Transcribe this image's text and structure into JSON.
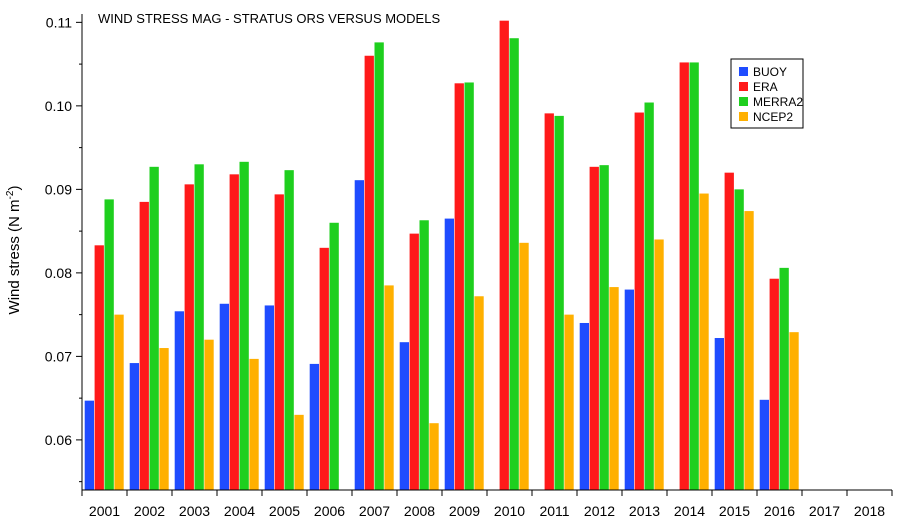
{
  "chart_data": {
    "type": "bar",
    "title": "WIND STRESS MAG - STRATUS ORS VERSUS MODELS",
    "ylabel": "Wind stress (N m",
    "ylabel_sup": "-2",
    "ylabel_close": ")",
    "ylim": [
      0.054,
      0.111
    ],
    "yticks": [
      0.06,
      0.07,
      0.08,
      0.09,
      0.1,
      0.11
    ],
    "ytick_labels": [
      "0.06",
      "0.07",
      "0.08",
      "0.09",
      "0.10",
      "0.11"
    ],
    "categories": [
      "2001",
      "2002",
      "2003",
      "2004",
      "2005",
      "2006",
      "2007",
      "2008",
      "2009",
      "2010",
      "2011",
      "2012",
      "2013",
      "2014",
      "2015",
      "2016",
      "2017",
      "2018"
    ],
    "legend_position": "top-right",
    "series": [
      {
        "name": "BUOY",
        "color": "#1f4cff",
        "values": [
          0.0647,
          0.0692,
          0.0754,
          0.0763,
          0.0761,
          0.0691,
          0.0911,
          0.0717,
          0.0865,
          null,
          null,
          0.074,
          0.078,
          null,
          0.0722,
          0.0648,
          null,
          null
        ]
      },
      {
        "name": "ERA",
        "color": "#ff1a1a",
        "values": [
          0.0833,
          0.0885,
          0.0906,
          0.0918,
          0.0894,
          0.083,
          0.106,
          0.0847,
          0.1027,
          0.1102,
          0.0991,
          0.0927,
          0.0992,
          0.1052,
          0.092,
          0.0793,
          null,
          null
        ]
      },
      {
        "name": "MERRA2",
        "color": "#1ecf1e",
        "values": [
          0.0888,
          0.0927,
          0.093,
          0.0933,
          0.0923,
          0.086,
          0.1076,
          0.0863,
          0.1028,
          0.1081,
          0.0988,
          0.0929,
          0.1004,
          0.1052,
          0.09,
          0.0806,
          null,
          null
        ]
      },
      {
        "name": "NCEP2",
        "color": "#ffb000",
        "values": [
          0.075,
          0.071,
          0.072,
          0.0697,
          0.063,
          null,
          0.0785,
          0.062,
          0.0772,
          0.0836,
          0.075,
          0.0783,
          0.084,
          0.0895,
          0.0874,
          0.0729,
          null,
          null
        ]
      }
    ]
  }
}
